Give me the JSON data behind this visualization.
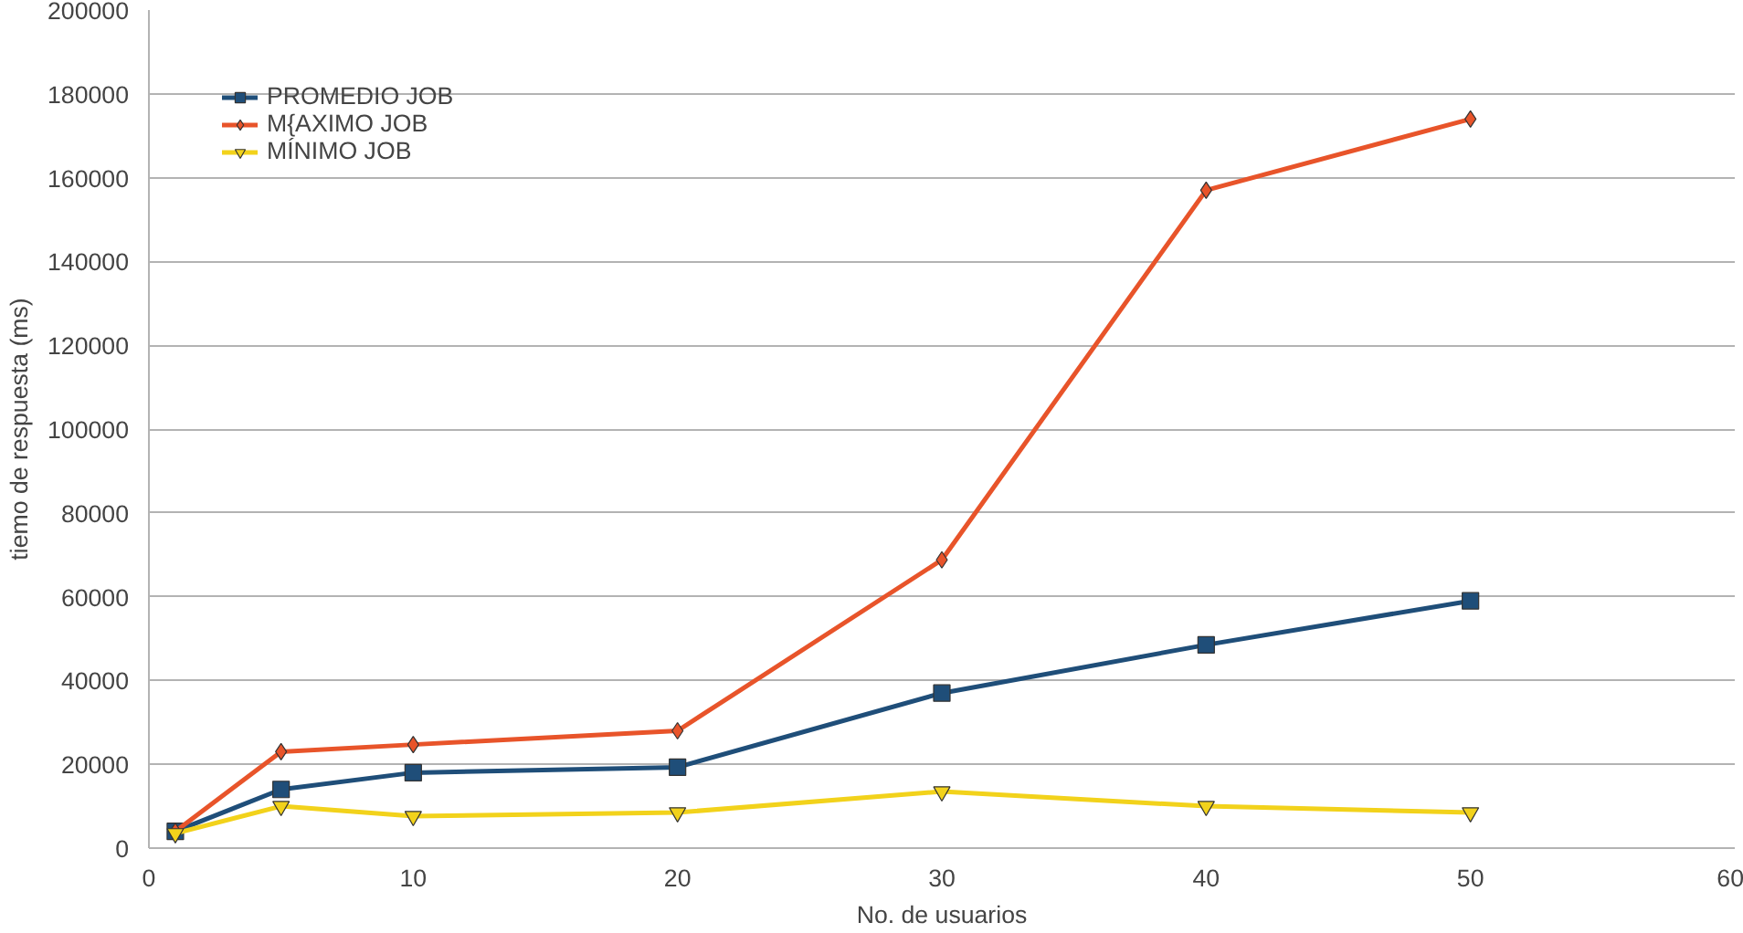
{
  "chart_data": {
    "type": "line",
    "xlabel": "No. de usuarios",
    "ylabel": "tiemo de respuesta (ms)",
    "x": [
      1,
      5,
      10,
      20,
      30,
      40,
      50
    ],
    "series": [
      {
        "name": "PROMEDIO JOB",
        "color": "#1f4e79",
        "marker": "square",
        "values": [
          4000,
          14000,
          18000,
          19300,
          37000,
          48500,
          59000
        ]
      },
      {
        "name": "M{AXIMO JOB",
        "color": "#e8542a",
        "marker": "diamond",
        "values": [
          4000,
          23000,
          24700,
          28000,
          68800,
          157000,
          174000
        ]
      },
      {
        "name": "MÍNIMO JOB",
        "color": "#f2d21b",
        "marker": "triangle",
        "values": [
          3500,
          10000,
          7600,
          8500,
          13500,
          10000,
          8500
        ]
      }
    ],
    "xlim": [
      0,
      60
    ],
    "xticks": [
      0,
      10,
      20,
      30,
      40,
      50,
      60
    ],
    "ylim": [
      0,
      200000
    ],
    "yticks": [
      0,
      20000,
      40000,
      60000,
      80000,
      100000,
      120000,
      140000,
      160000,
      180000,
      200000
    ],
    "grid": "y",
    "legend": "top left",
    "line_style": "solid"
  }
}
